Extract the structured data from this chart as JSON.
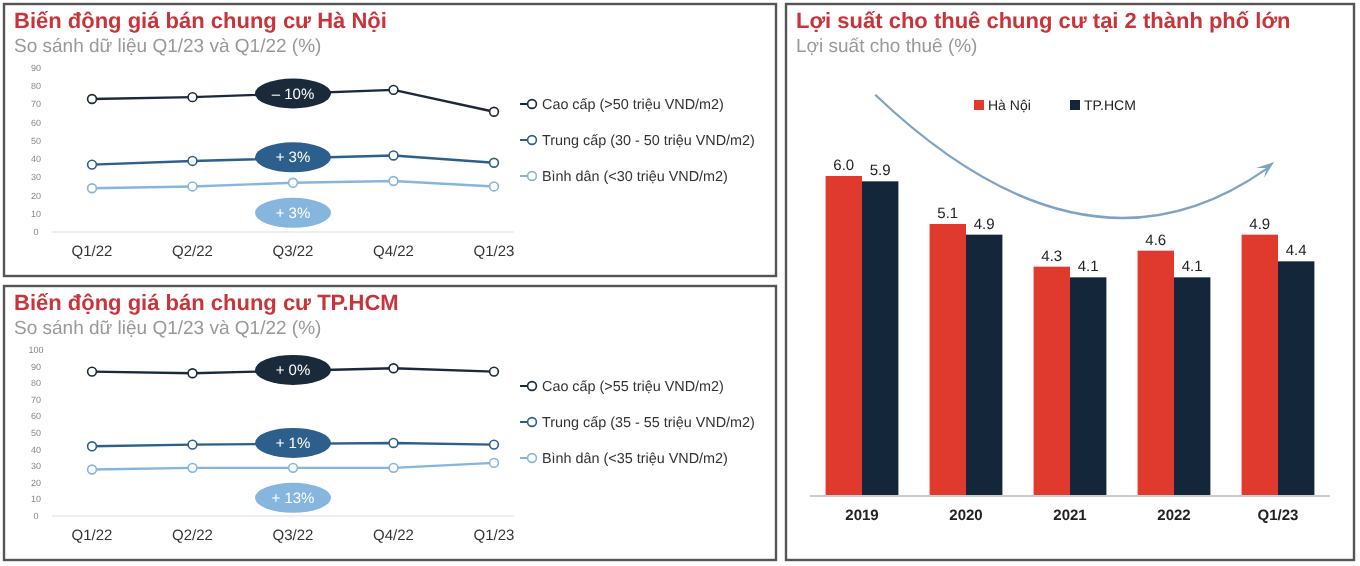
{
  "chart_data": [
    {
      "type": "line",
      "title": "Biến động giá bán chung cư Hà Nội",
      "subtitle": "So sánh dữ liệu Q1/23 và Q1/22 (%)",
      "categories": [
        "Q1/22",
        "Q2/22",
        "Q3/22",
        "Q4/22",
        "Q1/23"
      ],
      "ylim": [
        0,
        90
      ],
      "yticks": [
        0,
        10,
        20,
        30,
        40,
        50,
        60,
        70,
        80,
        90
      ],
      "marker": "circle",
      "legend": "right",
      "series": [
        {
          "name": "Cao cấp (>50 triệu VND/m2)",
          "color": "#1b2a3a",
          "values": [
            73,
            74,
            null,
            78,
            66
          ]
        },
        {
          "name": "Trung  cấp (30 - 50 triệu VND/m2)",
          "color": "#2d5f8c",
          "values": [
            37,
            39,
            null,
            42,
            38
          ]
        },
        {
          "name": "Bình dân (<30 triệu VND/m2)",
          "color": "#86b5de",
          "values": [
            24,
            25,
            27,
            28,
            25
          ]
        }
      ],
      "annotations": [
        {
          "text": "– 10%",
          "x": "Q3/22",
          "y": 76
        },
        {
          "text": "+ 3%",
          "x": "Q3/22",
          "y": 41
        },
        "+ 3%"
      ]
    },
    {
      "type": "line",
      "title": "Biến động giá bán chung cư TP.HCM",
      "subtitle": "So sánh dữ liệu Q1/23 và Q1/22 (%)",
      "categories": [
        "Q1/22",
        "Q2/22",
        "Q3/22",
        "Q4/22",
        "Q1/23"
      ],
      "ylim": [
        0,
        100
      ],
      "yticks": [
        0,
        10,
        20,
        30,
        40,
        50,
        60,
        70,
        80,
        90,
        100
      ],
      "marker": "circle",
      "legend": "right",
      "series": [
        {
          "name": "Cao cấp (>55 triệu VND/m2)",
          "color": "#1b2a3a",
          "values": [
            87,
            86,
            null,
            89,
            87
          ]
        },
        {
          "name": "Trung  cấp (35 - 55 triệu VND/m2)",
          "color": "#2d5f8c",
          "values": [
            42,
            43,
            null,
            44,
            43
          ]
        },
        {
          "name": "Bình dân (<35 triệu VND/m2)",
          "color": "#86b5de",
          "values": [
            28,
            29,
            29,
            29,
            32
          ]
        }
      ],
      "annotations": [
        {
          "text": "+ 0%",
          "x": "Q3/22",
          "y": 88
        },
        {
          "text": "+ 1%",
          "x": "Q3/22",
          "y": 44
        },
        "+ 13%"
      ]
    },
    {
      "type": "bar",
      "title": "Lợi suất cho thuê chung cư tại 2 thành phố lớn",
      "subtitle": "Lợi suất cho thuê (%)",
      "categories": [
        "2019",
        "2020",
        "2021",
        "2022",
        "Q1/23"
      ],
      "legend": "top",
      "series": [
        {
          "name": "Hà Nội",
          "color": "#e03a2e",
          "values": [
            6.0,
            5.1,
            4.3,
            4.6,
            4.9
          ],
          "value_labels": [
            "6.0",
            "5.1",
            "4.3",
            "4.6",
            "4.9"
          ]
        },
        {
          "name": "TP.HCM",
          "color": "#13263a",
          "values": [
            5.9,
            4.9,
            4.1,
            4.1,
            4.4
          ],
          "value_labels": [
            "5.9",
            "4.9",
            "4.1",
            "4.1",
            "4.4"
          ]
        }
      ]
    }
  ]
}
